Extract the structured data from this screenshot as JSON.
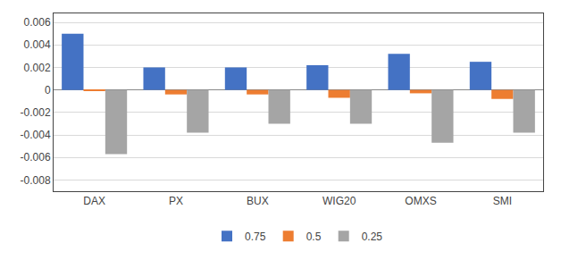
{
  "chart_data": {
    "type": "bar",
    "categories": [
      "DAX",
      "PX",
      "BUX",
      "WIG20",
      "OMXS",
      "SMI"
    ],
    "series": [
      {
        "name": "0.75",
        "color": "#4472C4",
        "values": [
          0.005,
          0.002,
          0.002,
          0.0022,
          0.0032,
          0.0025
        ]
      },
      {
        "name": "0.5",
        "color": "#ED7D31",
        "values": [
          -0.0001,
          -0.0004,
          -0.0004,
          -0.0007,
          -0.0003,
          -0.0008
        ]
      },
      {
        "name": "0.25",
        "color": "#A5A5A5",
        "values": [
          -0.0057,
          -0.0038,
          -0.003,
          -0.003,
          -0.0047,
          -0.0038
        ]
      }
    ],
    "ylim": [
      -0.009,
      0.0068
    ],
    "yticks": [
      -0.008,
      -0.006,
      -0.004,
      -0.002,
      0,
      0.002,
      0.004,
      0.006
    ],
    "grid": true,
    "legend": "bottom"
  }
}
